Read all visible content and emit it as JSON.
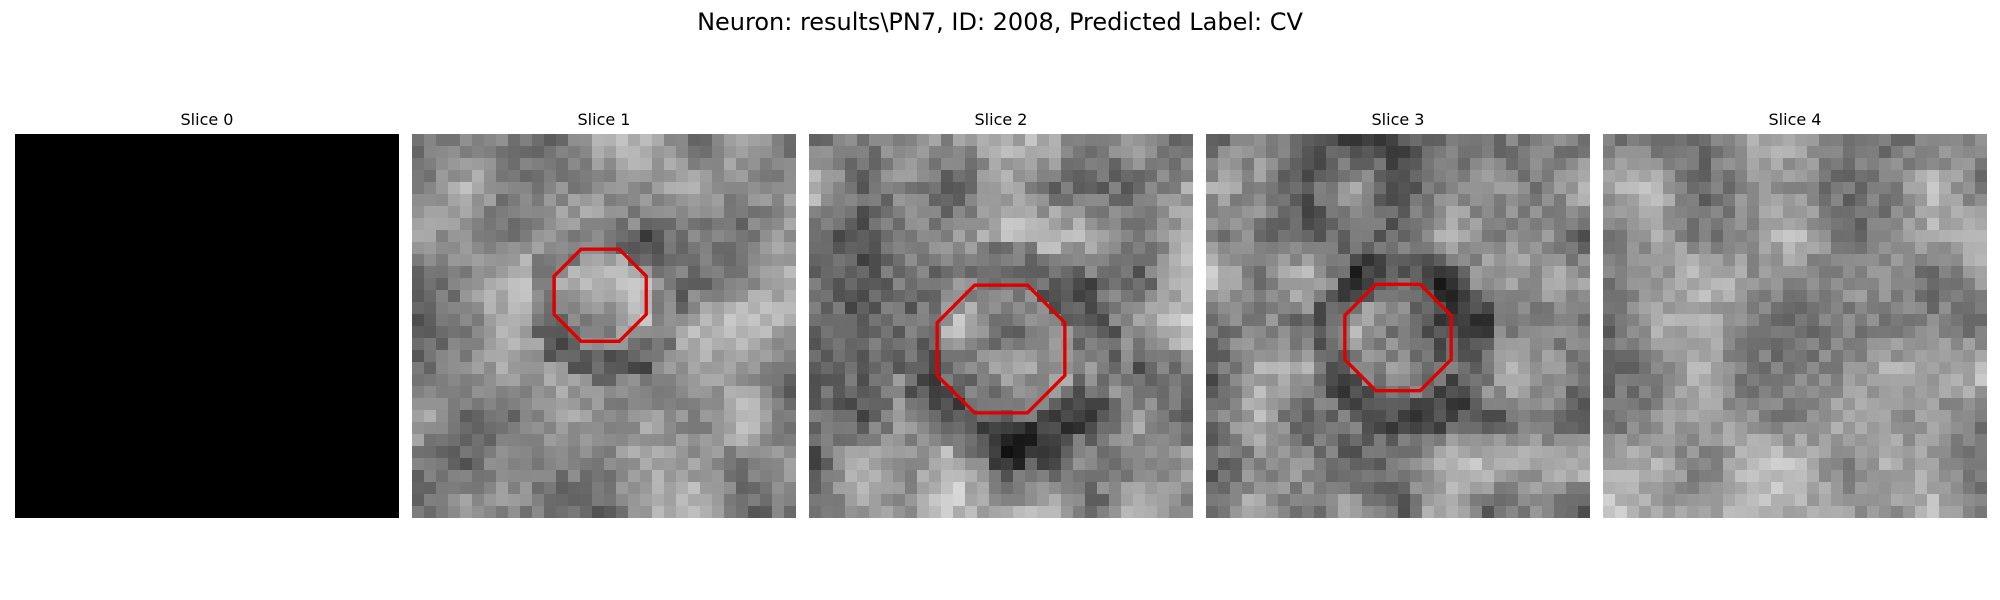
{
  "figure": {
    "title": "Neuron: results\\PN7, ID: 2008, Predicted Label: CV"
  },
  "slices": [
    {
      "title": "Slice 0",
      "mean_intensity": 0,
      "contrast": 0,
      "seed": 1,
      "roi": null
    },
    {
      "title": "Slice 1",
      "mean_intensity": 0.58,
      "contrast": 0.3,
      "seed": 11,
      "roi": "contour",
      "roi_center": [
        0.49,
        0.42
      ],
      "roi_radius": 0.13
    },
    {
      "title": "Slice 2",
      "mean_intensity": 0.55,
      "contrast": 0.35,
      "seed": 23,
      "roi": "contour",
      "roi_center": [
        0.5,
        0.56
      ],
      "roi_radius": 0.18
    },
    {
      "title": "Slice 3",
      "mean_intensity": 0.52,
      "contrast": 0.35,
      "seed": 37,
      "roi": "contour",
      "roi_center": [
        0.5,
        0.53
      ],
      "roi_radius": 0.15
    },
    {
      "title": "Slice 4",
      "mean_intensity": 0.6,
      "contrast": 0.3,
      "seed": 53,
      "roi": null
    }
  ],
  "colors": {
    "roi_outline": "#e00000",
    "background": "#ffffff"
  },
  "grid_resolution": 32
}
